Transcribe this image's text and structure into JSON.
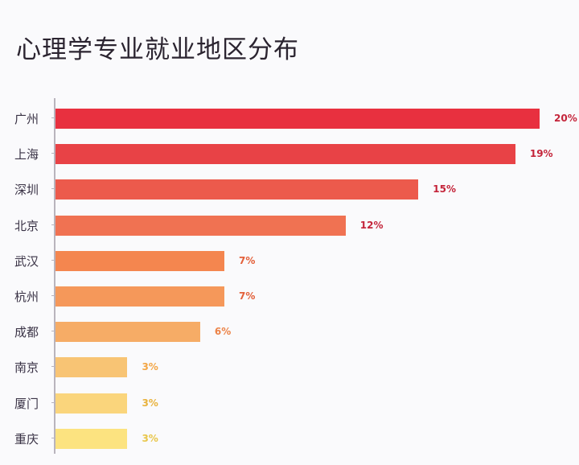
{
  "chart_data": {
    "type": "bar",
    "orientation": "horizontal",
    "title": "心理学专业就业地区分布",
    "xlabel": "",
    "ylabel": "",
    "grid": false,
    "legend": null,
    "categories": [
      "广州",
      "上海",
      "深圳",
      "北京",
      "武汉",
      "杭州",
      "成都",
      "南京",
      "厦门",
      "重庆"
    ],
    "values": [
      20,
      19,
      15,
      12,
      7,
      7,
      6,
      3,
      3,
      3
    ],
    "value_labels": [
      "20%",
      "19%",
      "15%",
      "12%",
      "7%",
      "7%",
      "6%",
      "3%",
      "3%",
      "3%"
    ],
    "colors": [
      "#e8303f",
      "#e84246",
      "#ec5a4c",
      "#f07252",
      "#f4864f",
      "#f5985a",
      "#f6ac66",
      "#f8c474",
      "#fad57c",
      "#fce380"
    ],
    "label_colors": [
      "#c4243a",
      "#c4243a",
      "#c4243a",
      "#c4243a",
      "#e3603a",
      "#e3603a",
      "#ec8348",
      "#f3a646",
      "#e8b23c",
      "#e8c64a"
    ]
  }
}
